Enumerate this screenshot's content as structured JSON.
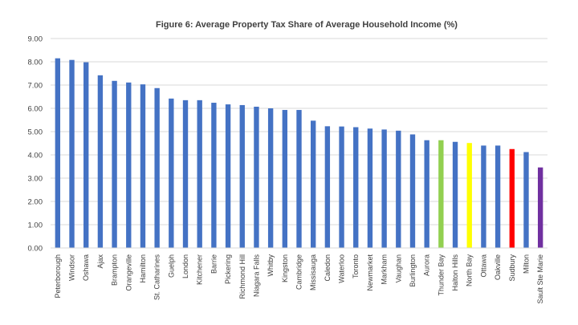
{
  "chart_data": {
    "type": "bar",
    "title": "Figure 6: Average Property Tax Share of Average Household Income (%)",
    "xlabel": "",
    "ylabel": "",
    "ylim": [
      0,
      9
    ],
    "ytick_step": 1,
    "ytick_labels": [
      "0.00",
      "1.00",
      "2.00",
      "3.00",
      "4.00",
      "5.00",
      "6.00",
      "7.00",
      "8.00",
      "9.00"
    ],
    "grid": true,
    "legend": "none",
    "categories": [
      "Peterborough",
      "Windsor",
      "Oshawa",
      "Ajax",
      "Brampton",
      "Orangeville",
      "Hamilton",
      "St. Catharines",
      "Guelph",
      "London",
      "Kitchener",
      "Barrie",
      "Pickering",
      "Richmond Hill",
      "Niagara Falls",
      "Whitby",
      "Kingston",
      "Cambridge",
      "Missisauga",
      "Caledon",
      "Waterloo",
      "Toronto",
      "Newmarket",
      "Markham",
      "Vaughan",
      "Burlington",
      "Aurora",
      "Thunder Bay",
      "Halton Hills",
      "North Bay",
      "Ottawa",
      "Oakville",
      "Sudbury",
      "Milton",
      "Sault Ste Marie"
    ],
    "values": [
      8.15,
      8.08,
      7.98,
      7.42,
      7.18,
      7.11,
      7.03,
      6.87,
      6.42,
      6.35,
      6.35,
      6.24,
      6.17,
      6.14,
      6.07,
      6.0,
      5.93,
      5.93,
      5.47,
      5.23,
      5.22,
      5.19,
      5.13,
      5.09,
      5.04,
      4.88,
      4.63,
      4.63,
      4.56,
      4.51,
      4.4,
      4.4,
      4.25,
      4.12,
      3.46
    ],
    "colors": {
      "default": "#4472c4",
      "highlights": {
        "Thunder Bay": "#92d050",
        "North Bay": "#ffff00",
        "Sudbury": "#ff0000",
        "Sault Ste Marie": "#7030a0"
      }
    }
  }
}
